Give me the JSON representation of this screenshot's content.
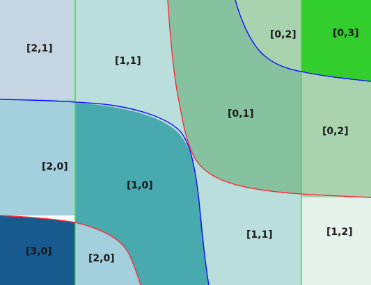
{
  "labels": {
    "r21_tl": "[2,1]",
    "r11_top": "[1,1]",
    "r02_top": "[0,2]",
    "r03": "[0,3]",
    "r01": "[0,1]",
    "r02_right": "[0,2]",
    "r20_left": "[2,0]",
    "r10": "[1,0]",
    "r30": "[3,0]",
    "r20_bottom": "[2,0]",
    "r11_bottom": "[1,1]",
    "r12": "[1,2]"
  },
  "colors": {
    "region_21": "#c6d5e2",
    "region_11": "#b9dedb",
    "region_20": "#a3d0dc",
    "region_10": "#48a9ae",
    "region_30": "#185a8e",
    "region_01": "#86c29f",
    "region_02": "#a9d3af",
    "region_03": "#33cd2e",
    "region_12": "#e4f2ea",
    "curve_blue": "#1010ff",
    "curve_red": "#ff2a3a",
    "gridline_green": "#34e834"
  }
}
